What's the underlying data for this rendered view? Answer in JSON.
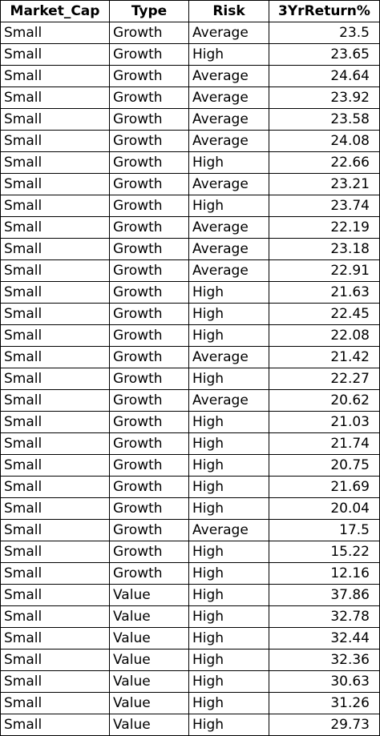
{
  "table": {
    "headers": [
      "Market_Cap",
      "Type",
      "Risk",
      "3YrReturn%"
    ],
    "rows": [
      [
        "Small",
        "Growth",
        "Average",
        "23.5"
      ],
      [
        "Small",
        "Growth",
        "High",
        "23.65"
      ],
      [
        "Small",
        "Growth",
        "Average",
        "24.64"
      ],
      [
        "Small",
        "Growth",
        "Average",
        "23.92"
      ],
      [
        "Small",
        "Growth",
        "Average",
        "23.58"
      ],
      [
        "Small",
        "Growth",
        "Average",
        "24.08"
      ],
      [
        "Small",
        "Growth",
        "High",
        "22.66"
      ],
      [
        "Small",
        "Growth",
        "Average",
        "23.21"
      ],
      [
        "Small",
        "Growth",
        "High",
        "23.74"
      ],
      [
        "Small",
        "Growth",
        "Average",
        "22.19"
      ],
      [
        "Small",
        "Growth",
        "Average",
        "23.18"
      ],
      [
        "Small",
        "Growth",
        "Average",
        "22.91"
      ],
      [
        "Small",
        "Growth",
        "High",
        "21.63"
      ],
      [
        "Small",
        "Growth",
        "High",
        "22.45"
      ],
      [
        "Small",
        "Growth",
        "High",
        "22.08"
      ],
      [
        "Small",
        "Growth",
        "Average",
        "21.42"
      ],
      [
        "Small",
        "Growth",
        "High",
        "22.27"
      ],
      [
        "Small",
        "Growth",
        "Average",
        "20.62"
      ],
      [
        "Small",
        "Growth",
        "High",
        "21.03"
      ],
      [
        "Small",
        "Growth",
        "High",
        "21.74"
      ],
      [
        "Small",
        "Growth",
        "High",
        "20.75"
      ],
      [
        "Small",
        "Growth",
        "High",
        "21.69"
      ],
      [
        "Small",
        "Growth",
        "High",
        "20.04"
      ],
      [
        "Small",
        "Growth",
        "Average",
        "17.5"
      ],
      [
        "Small",
        "Growth",
        "High",
        "15.22"
      ],
      [
        "Small",
        "Growth",
        "High",
        "12.16"
      ],
      [
        "Small",
        "Value",
        "High",
        "37.86"
      ],
      [
        "Small",
        "Value",
        "High",
        "32.78"
      ],
      [
        "Small",
        "Value",
        "High",
        "32.44"
      ],
      [
        "Small",
        "Value",
        "High",
        "32.36"
      ],
      [
        "Small",
        "Value",
        "High",
        "30.63"
      ],
      [
        "Small",
        "Value",
        "High",
        "31.26"
      ],
      [
        "Small",
        "Value",
        "High",
        "29.73"
      ]
    ]
  }
}
